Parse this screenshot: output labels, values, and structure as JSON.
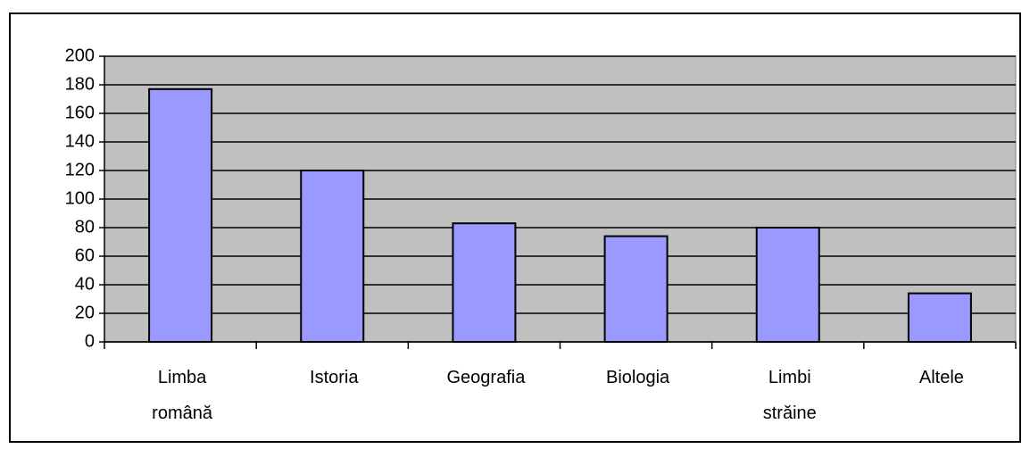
{
  "chart_data": {
    "type": "bar",
    "categories": [
      "Limba română",
      "Istoria",
      "Geografia",
      "Biologia",
      "Limbi străine",
      "Altele"
    ],
    "values": [
      177,
      120,
      83,
      74,
      80,
      34
    ],
    "color": "#9999ff",
    "ylim": [
      0,
      200
    ],
    "yticks": [
      0,
      20,
      40,
      60,
      80,
      100,
      120,
      140,
      160,
      180,
      200
    ],
    "grid": true
  }
}
